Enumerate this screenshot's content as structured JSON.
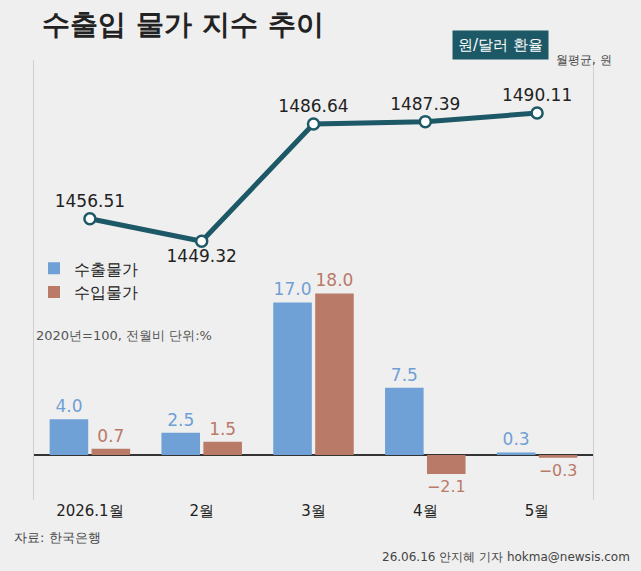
{
  "chart_data": {
    "type": "bar",
    "title": "수출입 물가 지수 추이",
    "subtitle": "2020년=100, 전월비 단위:%",
    "categories": [
      "2026.1월",
      "2월",
      "3월",
      "4월",
      "5월"
    ],
    "series": [
      {
        "name": "수출물가",
        "color": "#6fa0d6",
        "values": [
          4.0,
          2.5,
          17.0,
          7.5,
          0.3
        ],
        "value_labels": [
          "4.0",
          "2.5",
          "17.0",
          "7.5",
          "0.3"
        ]
      },
      {
        "name": "수입물가",
        "color": "#b97a68",
        "values": [
          0.7,
          1.5,
          18.0,
          -2.1,
          -0.3
        ],
        "value_labels": [
          "0.7",
          "1.5",
          "18.0",
          "−2.1",
          "−0.3"
        ]
      },
      {
        "name": "원/달러 환율",
        "type": "line",
        "axis": "y2",
        "color": "#1d5866",
        "marker": "circle",
        "unit": "월평균, 원",
        "values": [
          1456.51,
          1449.32,
          1486.64,
          1487.39,
          1490.11
        ]
      }
    ],
    "ylim": [
      -5,
      44
    ],
    "y2lim": [
      1367,
      1507
    ],
    "data_labels": true,
    "tick_labels": "x",
    "legend": "left",
    "grid": false,
    "source": "자료: 한국은행",
    "credit": "26.06.16 안지혜 기자 hokma@newsis.com"
  }
}
